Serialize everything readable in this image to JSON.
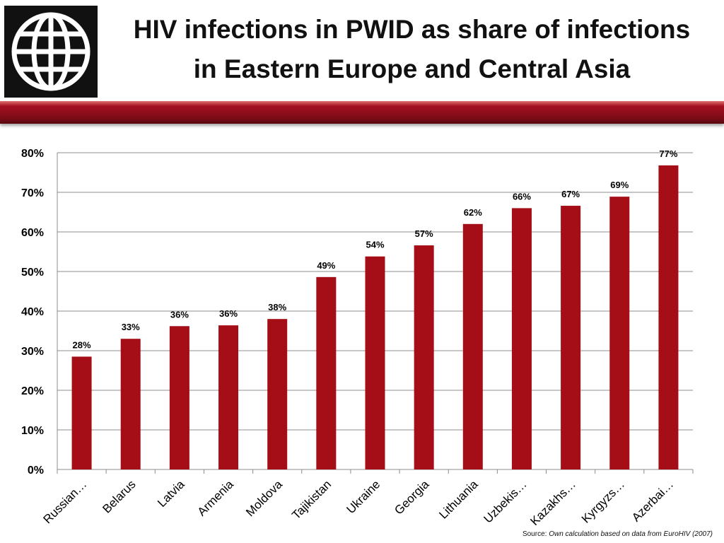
{
  "header": {
    "title_line1": "HIV infections in PWID as share of infections",
    "title_line2": "in Eastern Europe and Central Asia",
    "logo_icon": "globe-icon",
    "accent_color": "#a51020"
  },
  "source": {
    "prefix": "Source: ",
    "text": "Own calculation based on data from EuroHIV (2007)"
  },
  "chart_data": {
    "type": "bar",
    "title": "",
    "xlabel": "",
    "ylabel": "",
    "ylim": [
      0,
      80
    ],
    "y_ticks": [
      "0%",
      "10%",
      "20%",
      "30%",
      "40%",
      "50%",
      "60%",
      "70%",
      "80%"
    ],
    "grid": true,
    "bar_color": "#a50d17",
    "categories": [
      "Russian…",
      "Belarus",
      "Latvia",
      "Armenia",
      "Moldova",
      "Tajikistan",
      "Ukraine",
      "Georgia",
      "Lithuania",
      "Uzbekis…",
      "Kazakhs…",
      "Kyrgyzs…",
      "Azerbai…"
    ],
    "values": [
      28.5,
      33,
      36.2,
      36.4,
      38,
      48.6,
      53.8,
      56.6,
      62,
      66,
      66.6,
      68.9,
      76.8
    ],
    "data_labels": [
      "28%",
      "33%",
      "36%",
      "36%",
      "38%",
      "49%",
      "54%",
      "57%",
      "62%",
      "66%",
      "67%",
      "69%",
      "77%"
    ]
  }
}
